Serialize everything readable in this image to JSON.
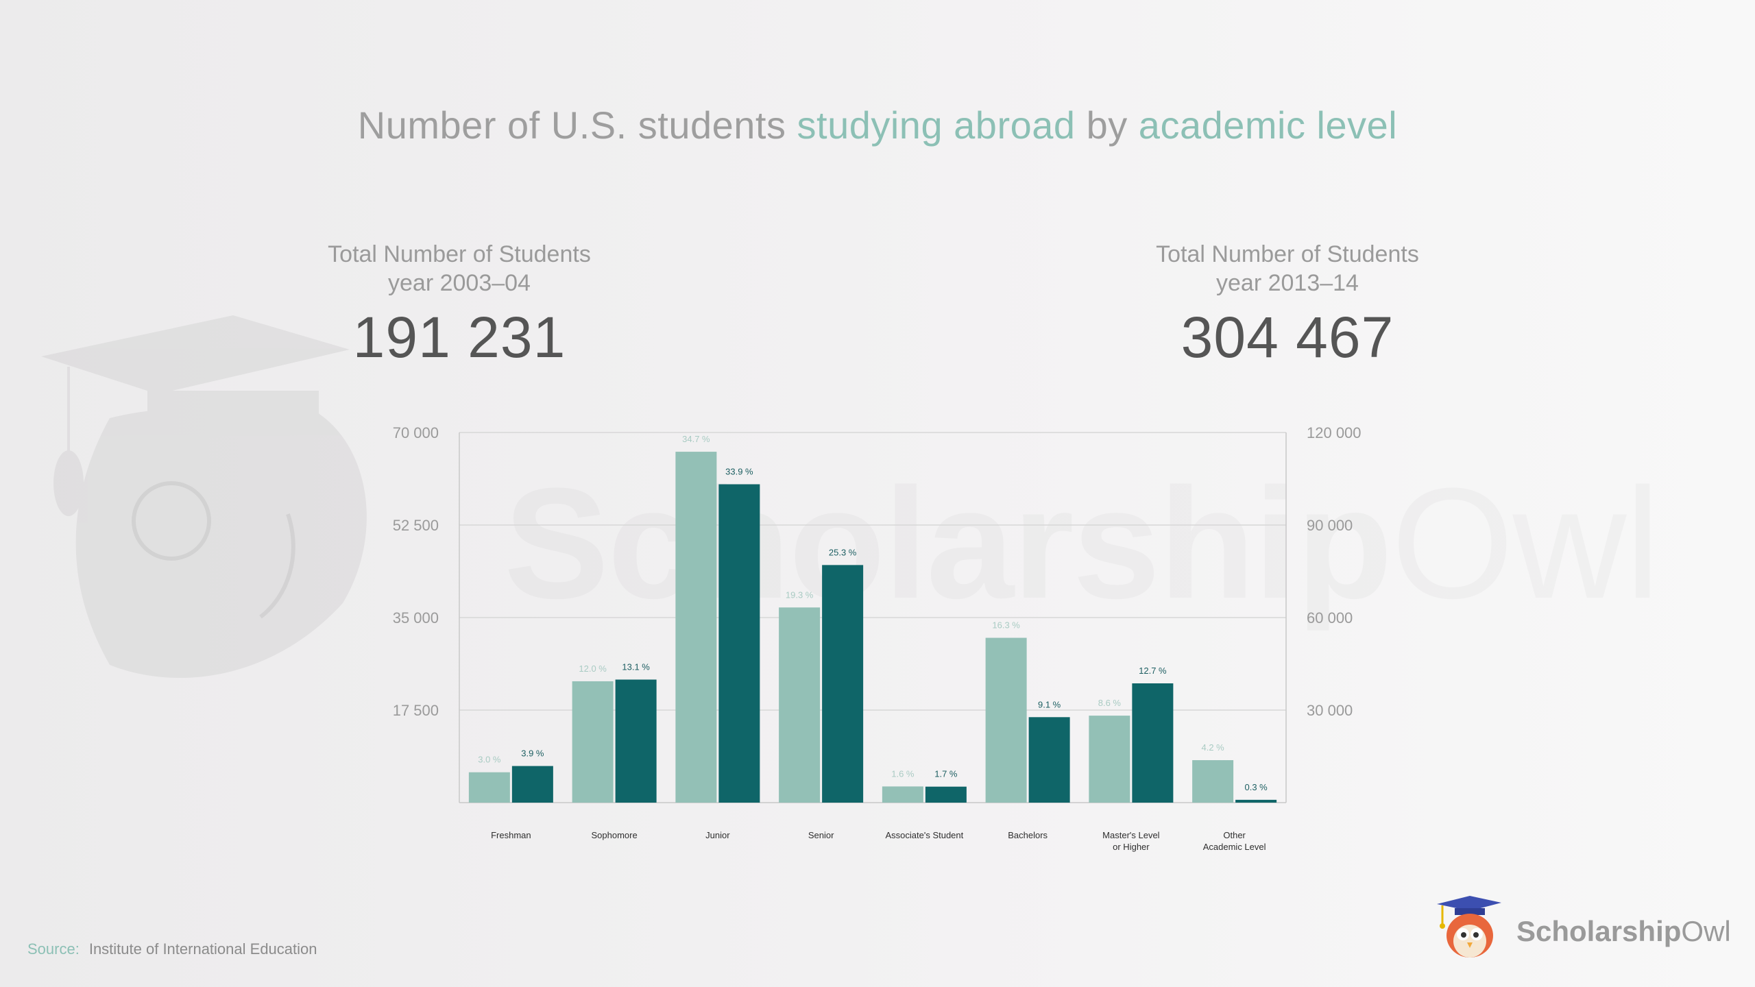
{
  "title": {
    "part1": "Number of U.S. students ",
    "highlight1": "studying abroad",
    "part2": " by ",
    "highlight2": "academic level"
  },
  "stats": {
    "left": {
      "label_line1": "Total Number of Students",
      "label_line2": "year 2003–04",
      "value": "191 231"
    },
    "right": {
      "label_line1": "Total Number of Students",
      "label_line2": "year 2013–14",
      "value": "304 467"
    }
  },
  "source": {
    "label": "Source:",
    "text": "Institute of International Education"
  },
  "logo": {
    "bold": "Scholarship",
    "regular": "Owl"
  },
  "watermark": {
    "bold": "Scholarship",
    "regular": "Owl"
  },
  "colors": {
    "series_2003": "#93c0b6",
    "series_2013": "#0f6568",
    "accent": "#8cc0b5"
  },
  "chart_data": {
    "type": "bar",
    "categories": [
      [
        "Freshman"
      ],
      [
        "Sophomore"
      ],
      [
        "Junior"
      ],
      [
        "Senior"
      ],
      [
        "Associate's Student"
      ],
      [
        "Bachelors"
      ],
      [
        "Master's Level",
        "or Higher"
      ],
      [
        "Other",
        "Academic Level"
      ]
    ],
    "left_axis": {
      "ylim": [
        0,
        70000
      ],
      "ticks": [
        17500,
        35000,
        52500,
        70000
      ],
      "tick_labels": [
        "17 500",
        "35 000",
        "52 500",
        "70 000"
      ]
    },
    "right_axis": {
      "ylim": [
        0,
        120000
      ],
      "ticks": [
        30000,
        60000,
        90000,
        120000
      ],
      "tick_labels": [
        "30 000",
        "60 000",
        "90 000",
        "120 000"
      ]
    },
    "series": [
      {
        "axis": "left",
        "color": "#93c0b6",
        "values": [
          5740,
          22950,
          66360,
          36910,
          3060,
          31170,
          16450,
          8030
        ],
        "labels": [
          "3.0 %",
          "12.0 %",
          "34.7 %",
          "19.3 %",
          "1.6 %",
          "16.3 %",
          "8.6 %",
          "4.2 %"
        ]
      },
      {
        "axis": "right",
        "color": "#0f6568",
        "values": [
          11870,
          39890,
          103220,
          77030,
          5180,
          27710,
          38670,
          910
        ],
        "labels": [
          "3.9 %",
          "13.1 %",
          "33.9 %",
          "25.3 %",
          "1.7 %",
          "9.1 %",
          "12.7 %",
          "0.3 %"
        ]
      }
    ],
    "grid": true
  }
}
